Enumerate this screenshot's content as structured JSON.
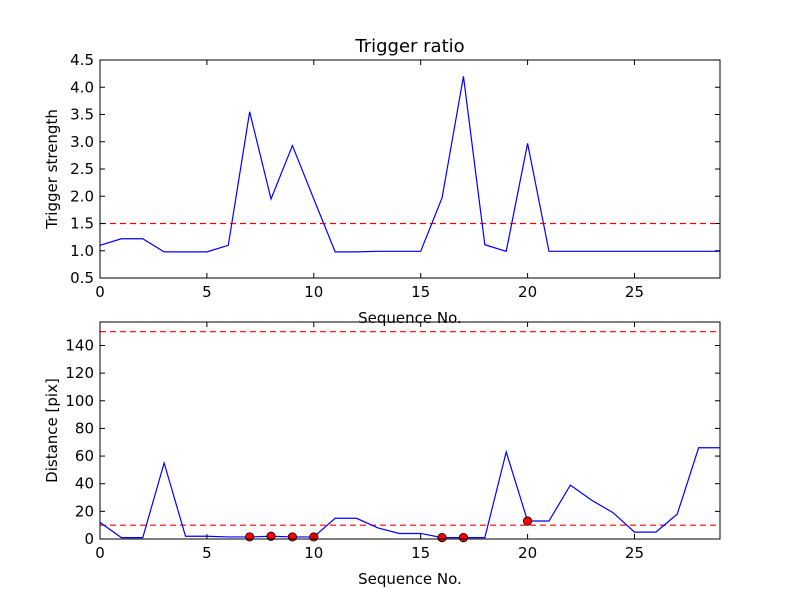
{
  "colors": {
    "line": "#0000ff",
    "threshold": "#ff0000",
    "marker": "#ff0000",
    "axes": "#000000"
  },
  "chart_data": [
    {
      "type": "line",
      "title": "Trigger ratio",
      "xlabel": "Sequence No.",
      "ylabel": "Trigger strength",
      "xlim": [
        0,
        29
      ],
      "ylim": [
        0.5,
        4.5
      ],
      "xticks": [
        0,
        5,
        10,
        15,
        20,
        25
      ],
      "yticks": [
        0.5,
        1.0,
        1.5,
        2.0,
        2.5,
        3.0,
        3.5,
        4.0,
        4.5
      ],
      "ytick_decimals": 1,
      "grid": false,
      "series": [
        {
          "x": [
            0,
            1,
            2,
            3,
            4,
            5,
            6,
            7,
            8,
            9,
            10,
            11,
            12,
            13,
            14,
            15,
            16,
            17,
            18,
            19,
            20,
            21,
            22,
            23,
            24,
            25,
            26,
            27,
            28,
            29
          ],
          "y": [
            1.1,
            1.22,
            1.22,
            0.98,
            0.98,
            0.98,
            1.1,
            3.55,
            1.95,
            2.93,
            1.95,
            0.98,
            0.98,
            0.99,
            0.99,
            0.99,
            1.97,
            4.2,
            1.11,
            0.99,
            2.97,
            0.99,
            0.99,
            0.99,
            0.99,
            0.99,
            0.99,
            0.99,
            0.99,
            0.99
          ]
        }
      ],
      "hlines": [
        1.5
      ]
    },
    {
      "type": "line",
      "title": "",
      "xlabel": "Sequence No.",
      "ylabel": "Distance [pix]",
      "xlim": [
        0,
        29
      ],
      "ylim": [
        0,
        157
      ],
      "xticks": [
        0,
        5,
        10,
        15,
        20,
        25
      ],
      "yticks": [
        0,
        20,
        40,
        60,
        80,
        100,
        120,
        140
      ],
      "ytick_decimals": 0,
      "grid": false,
      "series": [
        {
          "x": [
            0,
            1,
            2,
            3,
            4,
            5,
            6,
            7,
            8,
            9,
            10,
            11,
            12,
            13,
            14,
            15,
            16,
            17,
            18,
            19,
            20,
            21,
            22,
            23,
            24,
            25,
            26,
            27,
            28,
            29
          ],
          "y": [
            12,
            1,
            1,
            55,
            2,
            2,
            1.5,
            1.5,
            2,
            1.5,
            1.5,
            15,
            15,
            8,
            4,
            4,
            1,
            1,
            1,
            63,
            13,
            13,
            39,
            28,
            19,
            5,
            5,
            18,
            66,
            66
          ]
        }
      ],
      "markers": {
        "x": [
          7,
          8,
          9,
          10,
          16,
          17,
          20
        ],
        "y": [
          1.5,
          2,
          1.5,
          1.5,
          1,
          1,
          13
        ]
      },
      "hlines": [
        10,
        150
      ]
    }
  ]
}
